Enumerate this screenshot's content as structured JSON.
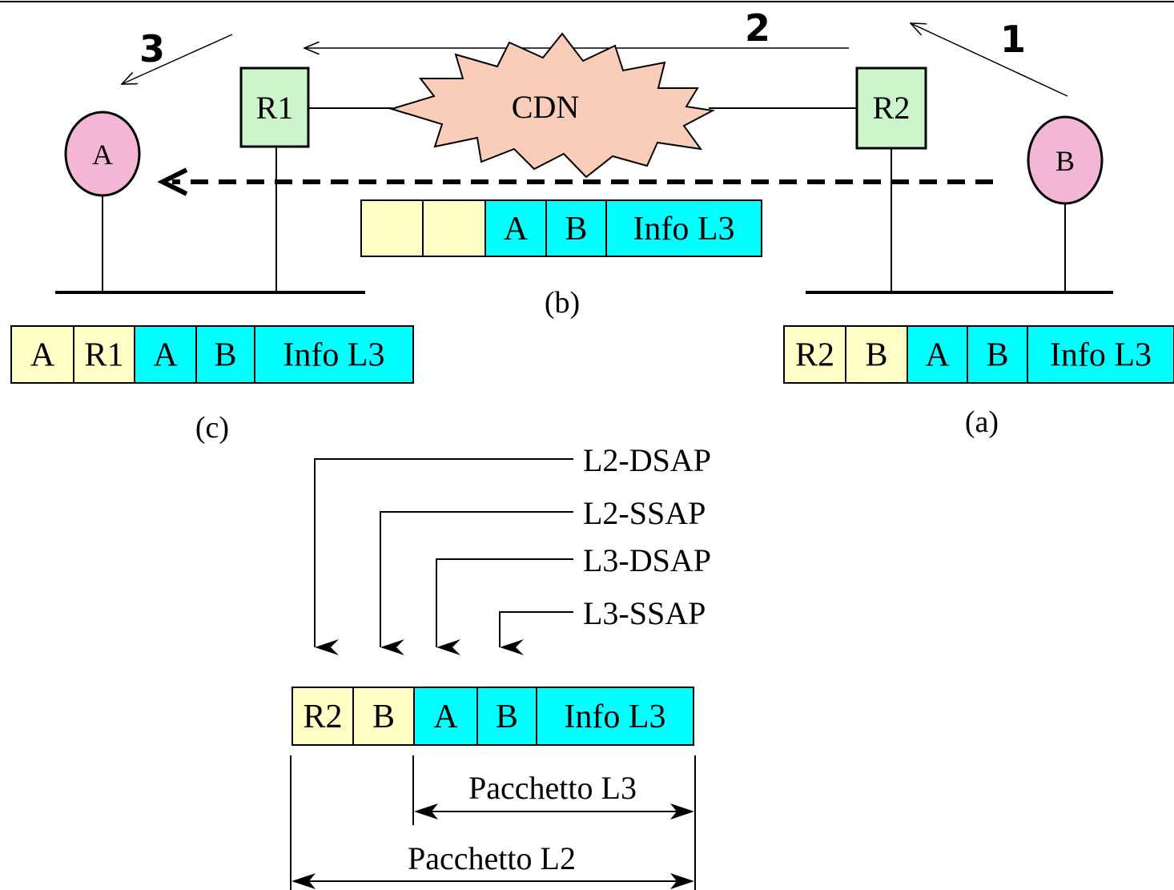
{
  "colors": {
    "host_fill": "#F4B6D6",
    "router_fill": "#CCF5CC",
    "cloud_fill": "#F9CDB8",
    "l2_header_fill": "#FFFFC6",
    "l3_fill": "#00FFFF",
    "stroke": "#000000"
  },
  "steps": {
    "s1": "1",
    "s2": "2",
    "s3": "3"
  },
  "hosts": {
    "a": "A",
    "b": "B"
  },
  "routers": {
    "r1": "R1",
    "r2": "R2"
  },
  "cloud": {
    "label": "CDN"
  },
  "frames": {
    "b": {
      "cells": [
        "",
        "",
        "A",
        "B",
        "Info L3"
      ],
      "caption": "(b)"
    },
    "c": {
      "cells": [
        "A",
        "R1",
        "A",
        "B",
        "Info L3"
      ],
      "caption": "(c)"
    },
    "a": {
      "cells": [
        "R2",
        "B",
        "A",
        "B",
        "Info L3"
      ],
      "caption": "(a)"
    },
    "detail": {
      "cells": [
        "R2",
        "B",
        "A",
        "B",
        "Info L3"
      ]
    }
  },
  "sap_labels": {
    "l2_dsap": "L2-DSAP",
    "l2_ssap": "L2-SSAP",
    "l3_dsap": "L3-DSAP",
    "l3_ssap": "L3-SSAP"
  },
  "spans": {
    "l3": "Pacchetto L3",
    "l2": "Pacchetto L2"
  }
}
